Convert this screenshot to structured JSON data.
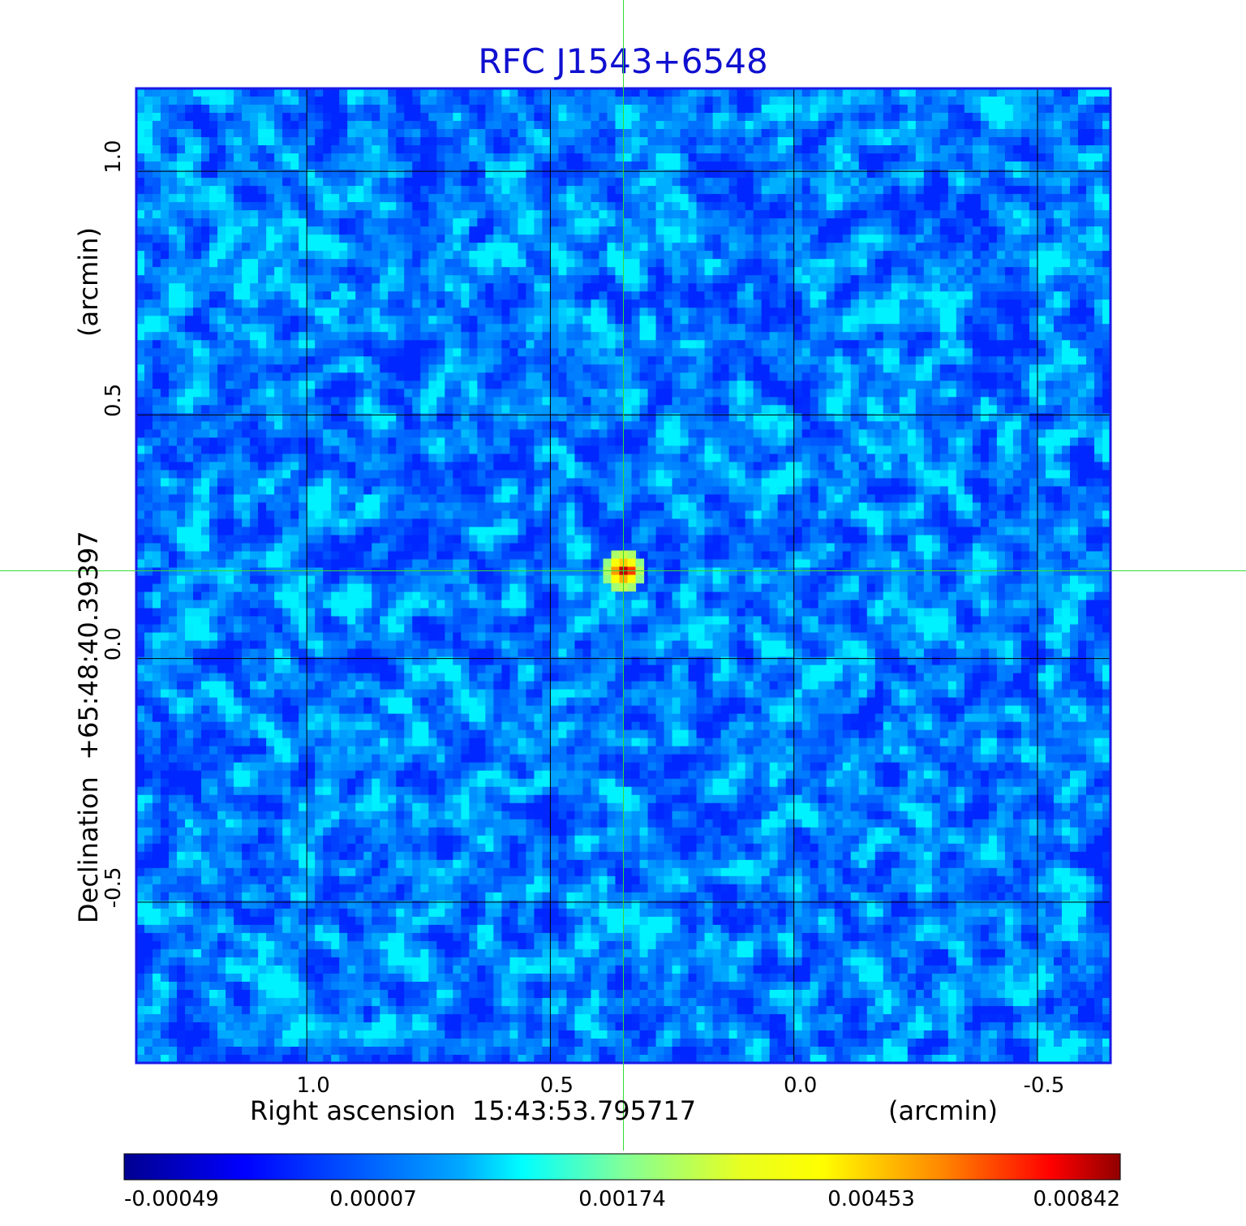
{
  "chart_data": {
    "type": "heatmap",
    "title": "RFC J1543+6548",
    "xlabel": "Right ascension  15:43:53.795717",
    "xunit": "(arcmin)",
    "ylabel": "Declination  +65:48:40.39397",
    "yunit": "(arcmin)",
    "x_ticks": [
      "1.0",
      "0.5",
      "0.0",
      "-0.5"
    ],
    "x_tick_values": [
      1.0,
      0.5,
      0.0,
      -0.5
    ],
    "y_ticks": [
      "1.0",
      "0.5",
      "0.0",
      "-0.5"
    ],
    "y_tick_values": [
      1.0,
      0.5,
      0.0,
      -0.5
    ],
    "xlim": [
      1.35,
      -0.65
    ],
    "ylim": [
      -0.83,
      1.17
    ],
    "grid": true,
    "crosshair": {
      "x": 0.35,
      "y": 0.18
    },
    "source_peak": {
      "x": 0.35,
      "y": 0.18,
      "value": 0.00842
    },
    "colorbar": {
      "ticks": [
        "-0.00049",
        "0.00007",
        "0.00174",
        "0.00453",
        "0.00842"
      ],
      "min": -0.00049,
      "max": 0.00842,
      "colormap": "jet"
    },
    "colors": {
      "title": "#1010d0",
      "frame": "#1a1ae6",
      "grid": "#000000",
      "crosshair": "#33dd33"
    }
  }
}
